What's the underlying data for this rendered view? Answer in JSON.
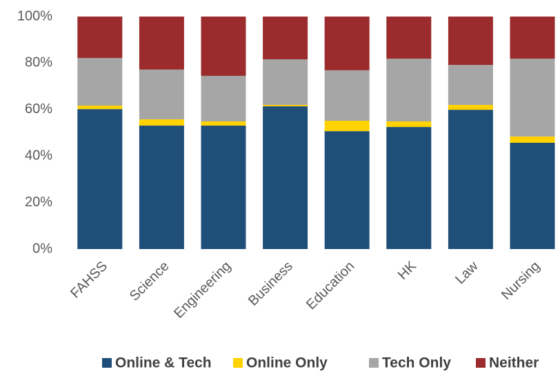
{
  "chart_data": {
    "type": "stacked_bar",
    "categories": [
      "FAHSS",
      "Science",
      "Engineering",
      "Business",
      "Education",
      "HK",
      "Law",
      "Nursing"
    ],
    "series": [
      {
        "name": "Online & Tech",
        "color": "#1f4e79",
        "values": [
          60.2,
          53.1,
          53.1,
          61.4,
          50.7,
          52.5,
          59.9,
          45.7
        ]
      },
      {
        "name": "Online Only",
        "color": "#ffd200",
        "values": [
          1.5,
          2.7,
          1.8,
          0.6,
          4.5,
          2.4,
          2.1,
          2.7
        ]
      },
      {
        "name": "Tech Only",
        "color": "#a6a6a6",
        "values": [
          20.5,
          21.4,
          19.6,
          19.6,
          21.7,
          27.0,
          17.2,
          33.5
        ]
      },
      {
        "name": "Neither",
        "color": "#9b2b2c",
        "values": [
          17.8,
          22.8,
          25.5,
          18.4,
          23.1,
          18.1,
          20.8,
          18.1
        ]
      }
    ],
    "ylim": [
      0,
      100
    ],
    "yticks": [
      {
        "value": 0,
        "label": "0%"
      },
      {
        "value": 20,
        "label": "20%"
      },
      {
        "value": 40,
        "label": "40%"
      },
      {
        "value": 60,
        "label": "60%"
      },
      {
        "value": 80,
        "label": "80%"
      },
      {
        "value": 100,
        "label": "100%"
      }
    ],
    "grid": false,
    "legend": "bottom"
  }
}
